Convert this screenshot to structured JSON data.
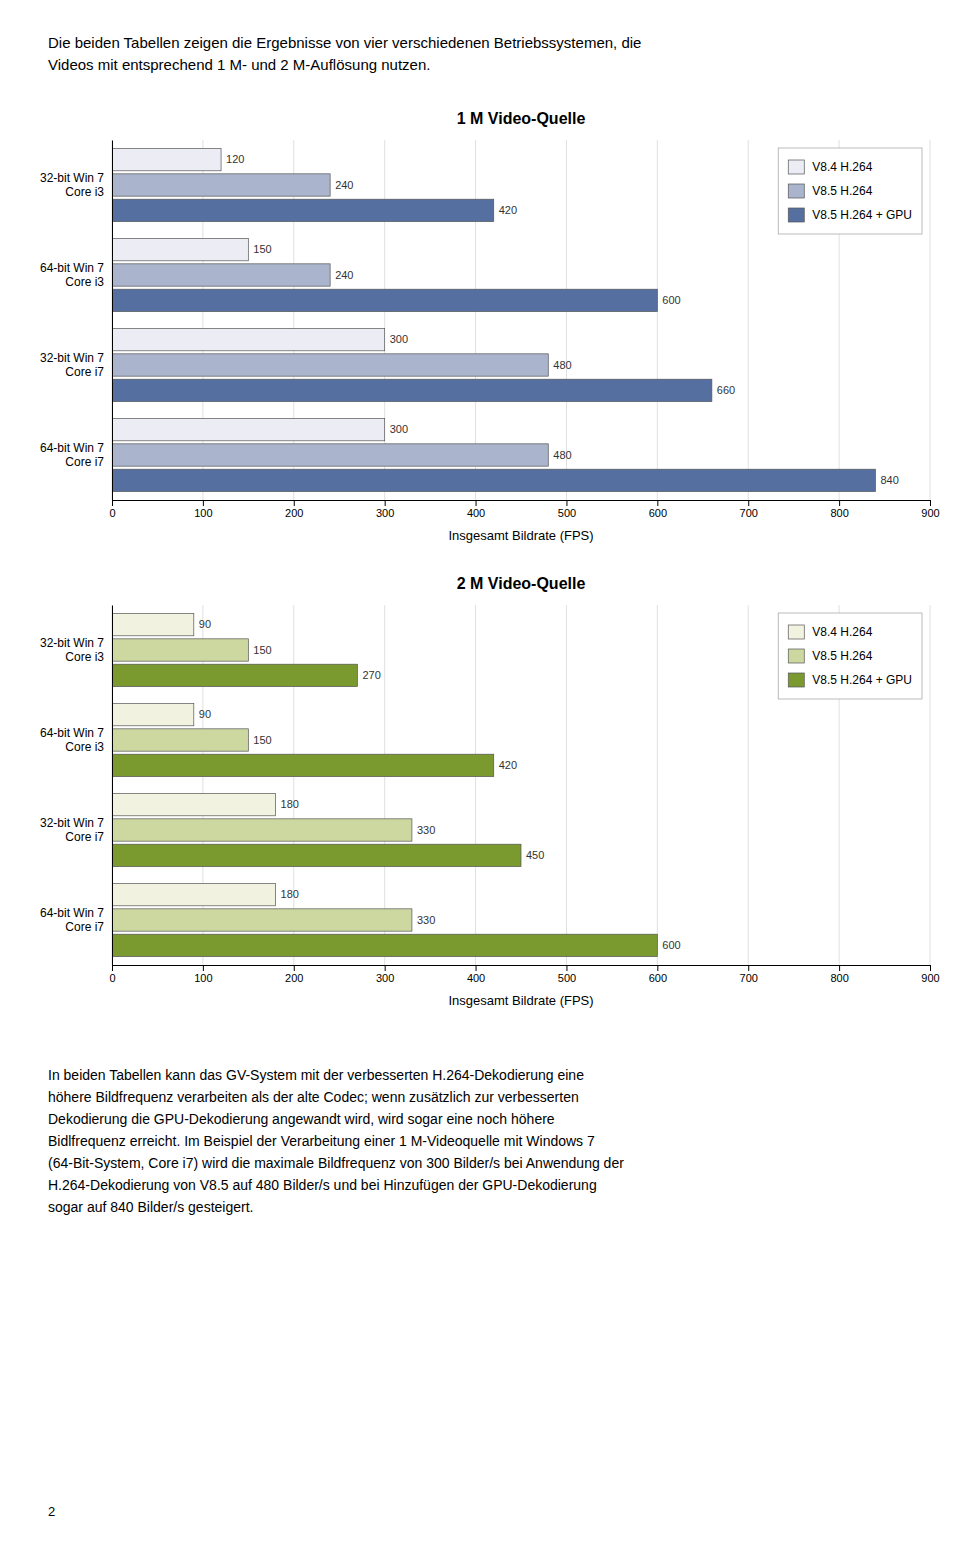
{
  "header": [
    "Die beiden Tabellen zeigen die Ergebnisse von vier verschiedenen Betriebssystemen, die",
    "Videos mit entsprechend 1 M- und 2 M-Auflösung nutzen."
  ],
  "chart_data": [
    {
      "type": "bar",
      "orientation": "horizontal",
      "title": "1 M Video-Quelle",
      "xlabel": "Insgesamt Bildrate (FPS)",
      "categories": [
        "32-bit Win 7\nCore i3",
        "64-bit Win 7\nCore i3",
        "32-bit Win 7\nCore i7",
        "64-bit Win 7\nCore i7"
      ],
      "series": [
        {
          "name": "V8.4 H.264",
          "color": "#ececf4",
          "values": [
            120,
            150,
            300,
            300
          ]
        },
        {
          "name": "V8.5 H.264",
          "color": "#aab4cc",
          "values": [
            240,
            240,
            480,
            480
          ]
        },
        {
          "name": "V8.5 H.264 + GPU",
          "color": "#5570a0",
          "values": [
            420,
            600,
            660,
            840
          ]
        }
      ],
      "xlim": [
        0,
        900
      ],
      "xticks": [
        0,
        100,
        200,
        300,
        400,
        500,
        600,
        700,
        800,
        900
      ],
      "grid": true,
      "legend": "upper right",
      "data_labels": true
    },
    {
      "type": "bar",
      "orientation": "horizontal",
      "title": "2 M Video-Quelle",
      "xlabel": "Insgesamt Bildrate (FPS)",
      "categories": [
        "32-bit Win 7\nCore i3",
        "64-bit Win 7\nCore i3",
        "32-bit Win 7\nCore i7",
        "64-bit Win 7\nCore i7"
      ],
      "series": [
        {
          "name": "V8.4 H.264",
          "color": "#f2f2e0",
          "values": [
            90,
            90,
            180,
            180
          ]
        },
        {
          "name": "V8.5 H.264",
          "color": "#ccd8a0",
          "values": [
            150,
            150,
            330,
            330
          ]
        },
        {
          "name": "V8.5 H.264 + GPU",
          "color": "#7a9a30",
          "values": [
            270,
            420,
            450,
            600
          ]
        }
      ],
      "xlim": [
        0,
        900
      ],
      "xticks": [
        0,
        100,
        200,
        300,
        400,
        500,
        600,
        700,
        800,
        900
      ],
      "grid": true,
      "legend": "upper right",
      "data_labels": true
    }
  ],
  "footer": [
    "In beiden Tabellen kann das GV-System mit der verbesserten H.264-Dekodierung eine",
    "höhere Bildfrequenz verarbeiten als der alte Codec; wenn zusätzlich zur verbesserten",
    "Dekodierung die GPU-Dekodierung angewandt wird, wird sogar eine noch höhere",
    "Bidlfrequenz erreicht. Im Beispiel der Verarbeitung einer 1 M-Videoquelle mit Windows 7",
    "(64-Bit-System, Core i7) wird die maximale Bildfrequenz von 300 Bilder/s bei Anwendung der",
    "H.264-Dekodierung von V8.5 auf 480 Bilder/s und bei Hinzufügen der GPU-Dekodierung",
    "sogar auf 840 Bilder/s gesteigert."
  ],
  "page_number": "2"
}
